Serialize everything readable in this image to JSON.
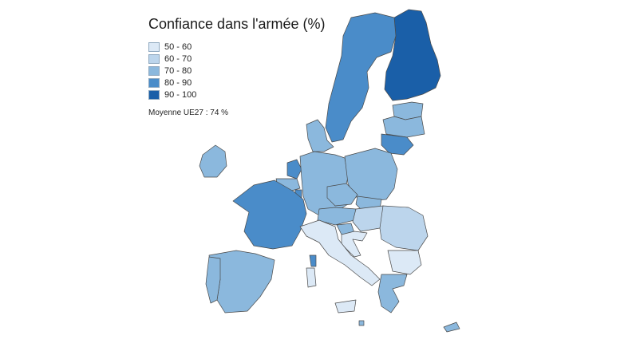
{
  "map": {
    "title": "Confiance dans l'armée (%)",
    "legend": [
      {
        "label": "50 - 60",
        "color": "#dce9f6"
      },
      {
        "label": "60 - 70",
        "color": "#bcd5ec"
      },
      {
        "label": "70 - 80",
        "color": "#8bb8dd"
      },
      {
        "label": "80 - 90",
        "color": "#4a8cc9"
      },
      {
        "label": "90 - 100",
        "color": "#1a5fa8"
      }
    ],
    "average_note": "Moyenne UE27 : 74 %"
  }
}
